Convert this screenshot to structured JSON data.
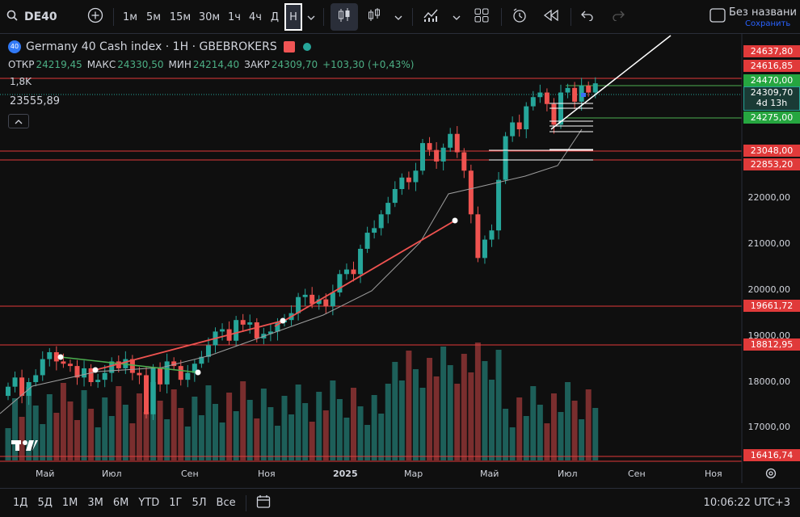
{
  "toolbar": {
    "symbol": "DE40",
    "intervals": [
      "1м",
      "5м",
      "15м",
      "30м",
      "1ч",
      "4ч",
      "Д",
      "Н"
    ],
    "active_interval": "Н",
    "layout_name": "Без названи",
    "save_label": "Сохранить"
  },
  "legend": {
    "badge": "40",
    "title": "Germany 40 Cash index · 1H · GBEBROKERS",
    "open_label": "ОТКР",
    "open": "24219,45",
    "high_label": "МАКС",
    "high": "24330,50",
    "low_label": "МИН",
    "low": "24214,40",
    "close_label": "ЗАКР",
    "close": "24309,70",
    "change": "+103,30 (+0,43%)",
    "volume": "1,8K",
    "indicator_value": "23555,89"
  },
  "price_axis": {
    "ticks": [
      "22000,00",
      "21000,00",
      "20000,00",
      "19000,00",
      "18000,00",
      "17000,00"
    ],
    "levels": [
      {
        "label": "24637,80",
        "color": "#e03a3a"
      },
      {
        "label": "24616,85",
        "color": "#e03a3a"
      },
      {
        "label": "24470,00",
        "color": "#26a640"
      },
      {
        "label": "24309,70",
        "color": "#26a69a",
        "sub": "4d 13h"
      },
      {
        "label": "24275,00",
        "color": "#26a640"
      },
      {
        "label": "23048,00",
        "color": "#e03a3a"
      },
      {
        "label": "22853,20",
        "color": "#e03a3a"
      },
      {
        "label": "19661,72",
        "color": "#e03a3a"
      },
      {
        "label": "18812,95",
        "color": "#e03a3a"
      },
      {
        "label": "16416,74",
        "color": "#e03a3a"
      }
    ]
  },
  "time_axis": {
    "labels": [
      "Май",
      "Июл",
      "Сен",
      "Ноя",
      "2025",
      "Мар",
      "Май",
      "Июл",
      "Сен",
      "Ноя"
    ]
  },
  "ranges": [
    "1Д",
    "5Д",
    "1М",
    "3М",
    "6М",
    "YTD",
    "1Г",
    "5Л",
    "Все"
  ],
  "clock": "10:06:22 UTC+3",
  "colors": {
    "up": "#26a69a",
    "down": "#ef5350",
    "level": "#e03a3a"
  }
}
